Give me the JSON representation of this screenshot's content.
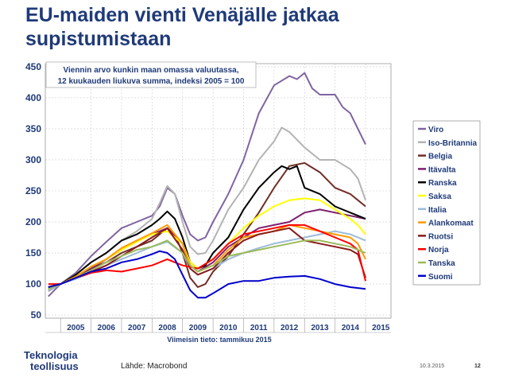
{
  "title": "EU-maiden vienti Venäjälle jatkaa supistumistaan",
  "footer": {
    "logo_line1": "Teknologia",
    "logo_line2": "teollisuus",
    "source": "Lähde: Macrobond",
    "date": "10.3.2015",
    "page": "12"
  },
  "chart_data": {
    "type": "line",
    "annotation_line1": "Viennin arvo kunkin maan omassa valuutassa,",
    "annotation_line2": "12 kuukauden liukuva summa, indeksi 2005 = 100",
    "xlabel": "Viimeisin tieto: tammikuu 2015",
    "xlim": [
      2004.5,
      2015.833
    ],
    "ylim": [
      45,
      455
    ],
    "yticks": [
      50,
      100,
      150,
      200,
      250,
      300,
      350,
      400,
      450
    ],
    "xtick_labels": [
      "2005",
      "2006",
      "2007",
      "2008",
      "2009",
      "2010",
      "2011",
      "2012",
      "2013",
      "2014",
      "2015"
    ],
    "grid": true,
    "legend_position": "right",
    "series": [
      {
        "name": "Viro",
        "color": "#8064a2",
        "x": [
          2004.6,
          2005,
          2005.5,
          2006,
          2006.5,
          2007,
          2007.5,
          2008,
          2008.25,
          2008.5,
          2008.75,
          2009,
          2009.25,
          2009.5,
          2009.75,
          2010,
          2010.5,
          2011,
          2011.5,
          2012,
          2012.5,
          2012.75,
          2013,
          2013.25,
          2013.5,
          2014,
          2014.25,
          2014.5,
          2014.75,
          2015.0
        ],
        "values": [
          80,
          100,
          118,
          145,
          168,
          190,
          200,
          210,
          225,
          255,
          245,
          210,
          180,
          170,
          175,
          200,
          245,
          300,
          375,
          420,
          435,
          430,
          440,
          415,
          405,
          405,
          385,
          375,
          350,
          325
        ]
      },
      {
        "name": "Iso-Britannia",
        "color": "#b3b3b3",
        "x": [
          2004.6,
          2005,
          2005.5,
          2006,
          2006.5,
          2007,
          2007.5,
          2008,
          2008.25,
          2008.5,
          2008.75,
          2009,
          2009.25,
          2009.5,
          2009.75,
          2010,
          2010.5,
          2011,
          2011.5,
          2012,
          2012.25,
          2012.5,
          2013,
          2013.5,
          2014,
          2014.5,
          2014.75,
          2015.0
        ],
        "values": [
          88,
          100,
          115,
          135,
          150,
          170,
          185,
          205,
          230,
          258,
          245,
          200,
          160,
          148,
          150,
          170,
          220,
          255,
          300,
          330,
          352,
          345,
          320,
          300,
          300,
          285,
          270,
          235
        ]
      },
      {
        "name": "Belgia",
        "color": "#6f2d26",
        "x": [
          2004.6,
          2005,
          2005.5,
          2006,
          2006.5,
          2007,
          2007.5,
          2008,
          2008.25,
          2008.5,
          2008.75,
          2009,
          2009.25,
          2009.5,
          2009.75,
          2010,
          2010.5,
          2011,
          2011.5,
          2012,
          2012.5,
          2013,
          2013.5,
          2014,
          2014.5,
          2014.75,
          2015.0
        ],
        "values": [
          90,
          100,
          110,
          125,
          135,
          150,
          160,
          170,
          180,
          190,
          180,
          150,
          110,
          95,
          100,
          120,
          145,
          180,
          215,
          255,
          290,
          295,
          280,
          255,
          245,
          235,
          225
        ]
      },
      {
        "name": "Itävalta",
        "color": "#7f1f6e",
        "x": [
          2004.6,
          2005,
          2005.5,
          2006,
          2006.5,
          2007,
          2007.5,
          2008,
          2008.5,
          2009,
          2009.25,
          2009.5,
          2010,
          2010.5,
          2011,
          2011.5,
          2012,
          2012.5,
          2013,
          2013.5,
          2014,
          2014.5,
          2015.0
        ],
        "values": [
          95,
          100,
          110,
          125,
          140,
          155,
          170,
          180,
          190,
          165,
          130,
          120,
          135,
          160,
          175,
          190,
          195,
          200,
          215,
          220,
          215,
          210,
          205
        ]
      },
      {
        "name": "Ranska",
        "color": "#000000",
        "x": [
          2004.6,
          2005,
          2005.5,
          2006,
          2006.5,
          2007,
          2007.5,
          2008,
          2008.25,
          2008.5,
          2008.75,
          2009,
          2009.25,
          2009.5,
          2009.75,
          2010,
          2010.5,
          2011,
          2011.5,
          2012,
          2012.25,
          2012.5,
          2012.75,
          2013,
          2013.5,
          2014,
          2014.5,
          2014.75,
          2015.0
        ],
        "values": [
          95,
          100,
          115,
          135,
          150,
          170,
          180,
          195,
          205,
          217,
          205,
          175,
          135,
          125,
          130,
          150,
          175,
          220,
          255,
          280,
          290,
          285,
          290,
          255,
          245,
          225,
          215,
          210,
          205
        ]
      },
      {
        "name": "Saksa",
        "color": "#ffff00",
        "x": [
          2004.6,
          2005,
          2005.5,
          2006,
          2006.5,
          2007,
          2007.5,
          2008,
          2008.5,
          2009,
          2009.25,
          2009.5,
          2010,
          2010.5,
          2011,
          2011.5,
          2012,
          2012.5,
          2013,
          2013.5,
          2014,
          2014.5,
          2014.75,
          2015.0
        ],
        "values": [
          95,
          100,
          112,
          128,
          140,
          155,
          168,
          180,
          185,
          165,
          135,
          125,
          140,
          165,
          190,
          210,
          225,
          235,
          238,
          235,
          220,
          205,
          195,
          180
        ]
      },
      {
        "name": "Italia",
        "color": "#9bbbd9",
        "x": [
          2004.6,
          2005,
          2005.5,
          2006,
          2006.5,
          2007,
          2007.5,
          2008,
          2008.5,
          2009,
          2009.25,
          2009.5,
          2010,
          2010.5,
          2011,
          2011.5,
          2012,
          2012.5,
          2013,
          2013.5,
          2014,
          2014.5,
          2015.0
        ],
        "values": [
          90,
          100,
          108,
          118,
          130,
          140,
          150,
          160,
          168,
          150,
          125,
          115,
          125,
          140,
          150,
          158,
          165,
          170,
          175,
          180,
          185,
          180,
          170
        ]
      },
      {
        "name": "Alankomaat",
        "color": "#ff9900",
        "x": [
          2004.6,
          2005,
          2005.5,
          2006,
          2006.5,
          2007,
          2007.5,
          2008,
          2008.5,
          2009,
          2009.25,
          2009.5,
          2010,
          2010.5,
          2011,
          2011.5,
          2012,
          2012.5,
          2013,
          2013.5,
          2014,
          2014.5,
          2014.75,
          2015.0
        ],
        "values": [
          92,
          100,
          112,
          128,
          140,
          158,
          170,
          182,
          195,
          165,
          130,
          120,
          130,
          155,
          175,
          180,
          185,
          195,
          190,
          185,
          180,
          175,
          165,
          140
        ]
      },
      {
        "name": "Ruotsi",
        "color": "#8b1a1a",
        "x": [
          2004.6,
          2005,
          2005.5,
          2006,
          2006.5,
          2007,
          2007.5,
          2008,
          2008.5,
          2009,
          2009.25,
          2009.5,
          2010,
          2010.5,
          2011,
          2011.5,
          2012,
          2012.5,
          2013,
          2013.5,
          2014,
          2014.5,
          2014.75,
          2015.0
        ],
        "values": [
          95,
          100,
          110,
          120,
          130,
          145,
          160,
          175,
          190,
          155,
          125,
          115,
          125,
          150,
          170,
          180,
          185,
          190,
          170,
          165,
          160,
          155,
          148,
          110
        ]
      },
      {
        "name": "Norja",
        "color": "#ff0000",
        "x": [
          2004.6,
          2005,
          2005.5,
          2006,
          2006.5,
          2007,
          2007.5,
          2008,
          2008.5,
          2009,
          2009.5,
          2010,
          2010.5,
          2011,
          2011.5,
          2012,
          2012.5,
          2013,
          2013.5,
          2014,
          2014.5,
          2014.75,
          2015.0
        ],
        "values": [
          100,
          100,
          110,
          118,
          122,
          120,
          125,
          130,
          140,
          130,
          125,
          140,
          165,
          180,
          185,
          190,
          195,
          195,
          185,
          175,
          165,
          155,
          105
        ]
      },
      {
        "name": "Tanska",
        "color": "#9bbb59",
        "x": [
          2004.6,
          2005,
          2005.5,
          2006,
          2006.5,
          2007,
          2007.5,
          2008,
          2008.5,
          2009,
          2009.25,
          2009.5,
          2010,
          2010.5,
          2011,
          2011.5,
          2012,
          2012.5,
          2013,
          2013.5,
          2014,
          2014.5,
          2015.0
        ],
        "values": [
          92,
          100,
          110,
          122,
          135,
          145,
          155,
          160,
          170,
          150,
          130,
          120,
          130,
          145,
          150,
          155,
          160,
          165,
          170,
          170,
          165,
          160,
          150
        ]
      },
      {
        "name": "Suomi",
        "color": "#0000cc",
        "x": [
          2004.6,
          2005,
          2005.5,
          2006,
          2006.5,
          2007,
          2007.5,
          2008,
          2008.25,
          2008.5,
          2008.75,
          2009,
          2009.25,
          2009.5,
          2009.75,
          2010,
          2010.5,
          2011,
          2011.5,
          2012,
          2012.5,
          2013,
          2013.5,
          2014,
          2014.5,
          2015.0
        ],
        "values": [
          95,
          100,
          110,
          120,
          125,
          135,
          140,
          148,
          153,
          150,
          140,
          115,
          90,
          78,
          78,
          85,
          100,
          105,
          105,
          110,
          112,
          113,
          108,
          100,
          95,
          92
        ]
      }
    ]
  }
}
